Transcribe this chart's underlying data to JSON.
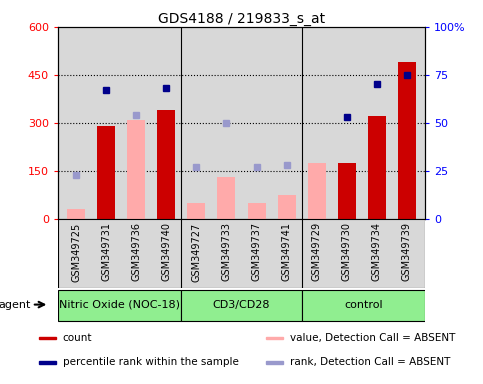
{
  "title": "GDS4188 / 219833_s_at",
  "samples": [
    "GSM349725",
    "GSM349731",
    "GSM349736",
    "GSM349740",
    "GSM349727",
    "GSM349733",
    "GSM349737",
    "GSM349741",
    "GSM349729",
    "GSM349730",
    "GSM349734",
    "GSM349739"
  ],
  "groups": [
    {
      "name": "Nitric Oxide (NOC-18)",
      "start": 0,
      "end": 4,
      "color": "#90EE90"
    },
    {
      "name": "CD3/CD28",
      "start": 4,
      "end": 8,
      "color": "#90EE90"
    },
    {
      "name": "control",
      "start": 8,
      "end": 12,
      "color": "#90EE90"
    }
  ],
  "count": [
    null,
    290,
    null,
    340,
    null,
    null,
    null,
    null,
    null,
    175,
    320,
    490
  ],
  "count_absent": [
    30,
    null,
    310,
    null,
    50,
    130,
    50,
    75,
    175,
    null,
    null,
    null
  ],
  "percentile_rank": [
    null,
    67,
    null,
    68,
    null,
    null,
    null,
    null,
    null,
    53,
    70,
    75
  ],
  "percentile_rank_absent": [
    23,
    null,
    54,
    null,
    27,
    50,
    27,
    28,
    null,
    null,
    null,
    null
  ],
  "ylim_left": [
    0,
    600
  ],
  "ylim_right": [
    0,
    100
  ],
  "yticks_left": [
    0,
    150,
    300,
    450,
    600
  ],
  "yticks_right": [
    0,
    25,
    50,
    75,
    100
  ],
  "ytick_labels_left": [
    "0",
    "150",
    "300",
    "450",
    "600"
  ],
  "ytick_labels_right": [
    "0",
    "25",
    "50",
    "75",
    "100%"
  ],
  "hlines": [
    150,
    300,
    450
  ],
  "bar_width": 0.6,
  "count_color": "#cc0000",
  "count_absent_color": "#ffaaaa",
  "rank_color": "#00008B",
  "rank_absent_color": "#9999cc",
  "bg_color": "#d8d8d8",
  "sample_bg_color": "#d8d8d8",
  "group_separator_indices": [
    4,
    8
  ],
  "legend_items": [
    {
      "color": "#cc0000",
      "label": "count",
      "col": 0
    },
    {
      "color": "#00008B",
      "label": "percentile rank within the sample",
      "col": 0
    },
    {
      "color": "#ffaaaa",
      "label": "value, Detection Call = ABSENT",
      "col": 1
    },
    {
      "color": "#9999cc",
      "label": "rank, Detection Call = ABSENT",
      "col": 1
    }
  ]
}
